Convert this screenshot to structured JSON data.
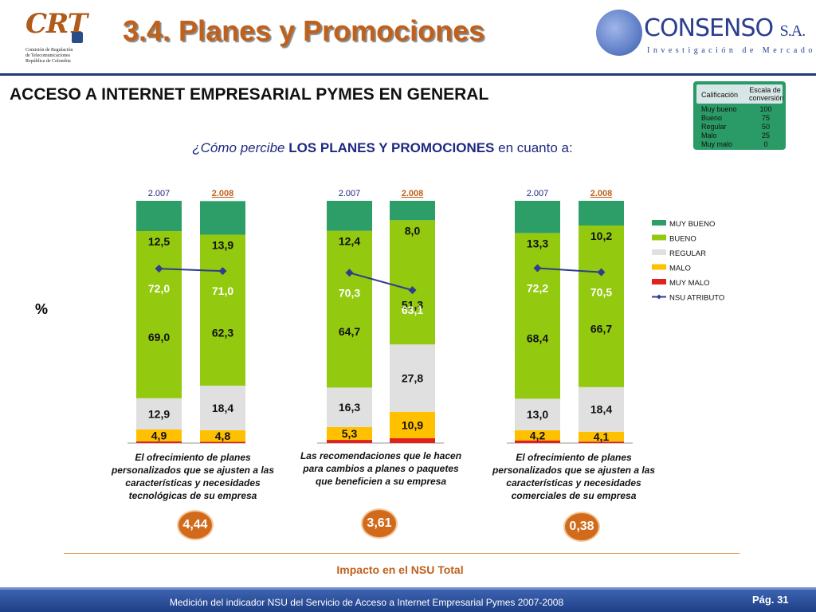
{
  "header": {
    "crt_logo_text": "CRT",
    "crt_logo_sub": [
      "Comisión de Regulación",
      "de Telecomunicaciones",
      "República de Colombia"
    ],
    "title": "3.4. Planes y Promociones",
    "consenso_name": "CONSENSO",
    "consenso_suffix": "S.A.",
    "consenso_tagline": "Investigación de Mercados"
  },
  "subtitle": "ACCESO A INTERNET EMPRESARIAL PYMES EN GENERAL",
  "question": {
    "prefix": "¿Cómo percibe ",
    "emphasis": "LOS PLANES Y PROMOCIONES",
    "suffix": " en cuanto a:"
  },
  "rating_table": {
    "header_label": "Calificación",
    "header_value": "Escala de conversión",
    "rows": [
      {
        "label": "Muy bueno",
        "value": "100"
      },
      {
        "label": "Bueno",
        "value": "75"
      },
      {
        "label": "Regular",
        "value": "50"
      },
      {
        "label": "Malo",
        "value": "25"
      },
      {
        "label": "Muy malo",
        "value": "0"
      }
    ]
  },
  "y_unit_label": "%",
  "chart_data": {
    "type": "bar",
    "stacked": true,
    "ylim": [
      0,
      100
    ],
    "grid": false,
    "legend_position": "right",
    "colors": {
      "MUY BUENO": "#2e9e69",
      "BUENO": "#93c90e",
      "REGULAR": "#e0e0e0",
      "MALO": "#ffc000",
      "MUY MALO": "#e3201c",
      "NSU ATRIBUTO": "#2e3d8f"
    },
    "legend": [
      "MUY BUENO",
      "BUENO",
      "REGULAR",
      "MALO",
      "MUY MALO",
      "NSU ATRIBUTO"
    ],
    "groups": [
      {
        "description": "El ofrecimiento de planes personalizados que se ajusten a las características y necesidades tecnológicas de su empresa",
        "impact": "4,44",
        "bars": [
          {
            "year": "2.007",
            "muy_malo": 0.7,
            "muy_malo_label": "",
            "malo": 4.9,
            "malo_label": "4,9",
            "regular": 12.9,
            "regular_label": "12,9",
            "bueno": 69.0,
            "bueno_label": "69,0",
            "muy_bueno": 12.5,
            "muy_bueno_label": "12,5",
            "nsu": 72.0,
            "nsu_label": "72,0"
          },
          {
            "year": "2.008",
            "muy_malo": 0.5,
            "muy_malo_label": "",
            "malo": 4.8,
            "malo_label": "4,8",
            "regular": 18.4,
            "regular_label": "18,4",
            "bueno": 62.3,
            "bueno_label": "62,3",
            "muy_bueno": 13.9,
            "muy_bueno_label": "13,9",
            "nsu": 71.0,
            "nsu_label": "71,0"
          }
        ]
      },
      {
        "description": "Las recomendaciones que le hacen para  cambios a planes o paquetes que beneficien a su empresa",
        "impact": "3,61",
        "bars": [
          {
            "year": "2.007",
            "muy_malo": 1.3,
            "muy_malo_label": "",
            "malo": 5.3,
            "malo_label": "5,3",
            "regular": 16.3,
            "regular_label": "16,3",
            "bueno": 64.7,
            "bueno_label": "64,7",
            "muy_bueno": 12.4,
            "muy_bueno_label": "12,4",
            "nsu": 70.3,
            "nsu_label": "70,3"
          },
          {
            "year": "2.008",
            "muy_malo": 2.0,
            "muy_malo_label": "",
            "malo": 10.9,
            "malo_label": "10,9",
            "regular": 27.8,
            "regular_label": "27,8",
            "bueno": 51.3,
            "bueno_label": "51,3",
            "muy_bueno": 8.0,
            "muy_bueno_label": "8,0",
            "nsu": 63.1,
            "nsu_label": "63,1"
          }
        ]
      },
      {
        "description": "El ofrecimiento de planes personalizados que se ajusten a las características y necesidades comerciales de su empresa",
        "impact": "0,38",
        "bars": [
          {
            "year": "2.007",
            "muy_malo": 1.1,
            "muy_malo_label": "",
            "malo": 4.2,
            "malo_label": "4,2",
            "regular": 13.0,
            "regular_label": "13,0",
            "bueno": 68.4,
            "bueno_label": "68,4",
            "muy_bueno": 13.3,
            "muy_bueno_label": "13,3",
            "nsu": 72.2,
            "nsu_label": "72,2"
          },
          {
            "year": "2.008",
            "muy_malo": 0.6,
            "muy_malo_label": "",
            "malo": 4.1,
            "malo_label": "4,1",
            "regular": 18.4,
            "regular_label": "18,4",
            "bueno": 66.7,
            "bueno_label": "66,7",
            "muy_bueno": 10.2,
            "muy_bueno_label": "10,2",
            "nsu": 70.5,
            "nsu_label": "70,5"
          }
        ]
      }
    ]
  },
  "impact_caption": "Impacto en el NSU Total",
  "footer": {
    "text": "Medición del  indicador NSU del Servicio de Acceso a Internet Empresarial Pymes 2007-2008",
    "page": "Pág. 31"
  }
}
